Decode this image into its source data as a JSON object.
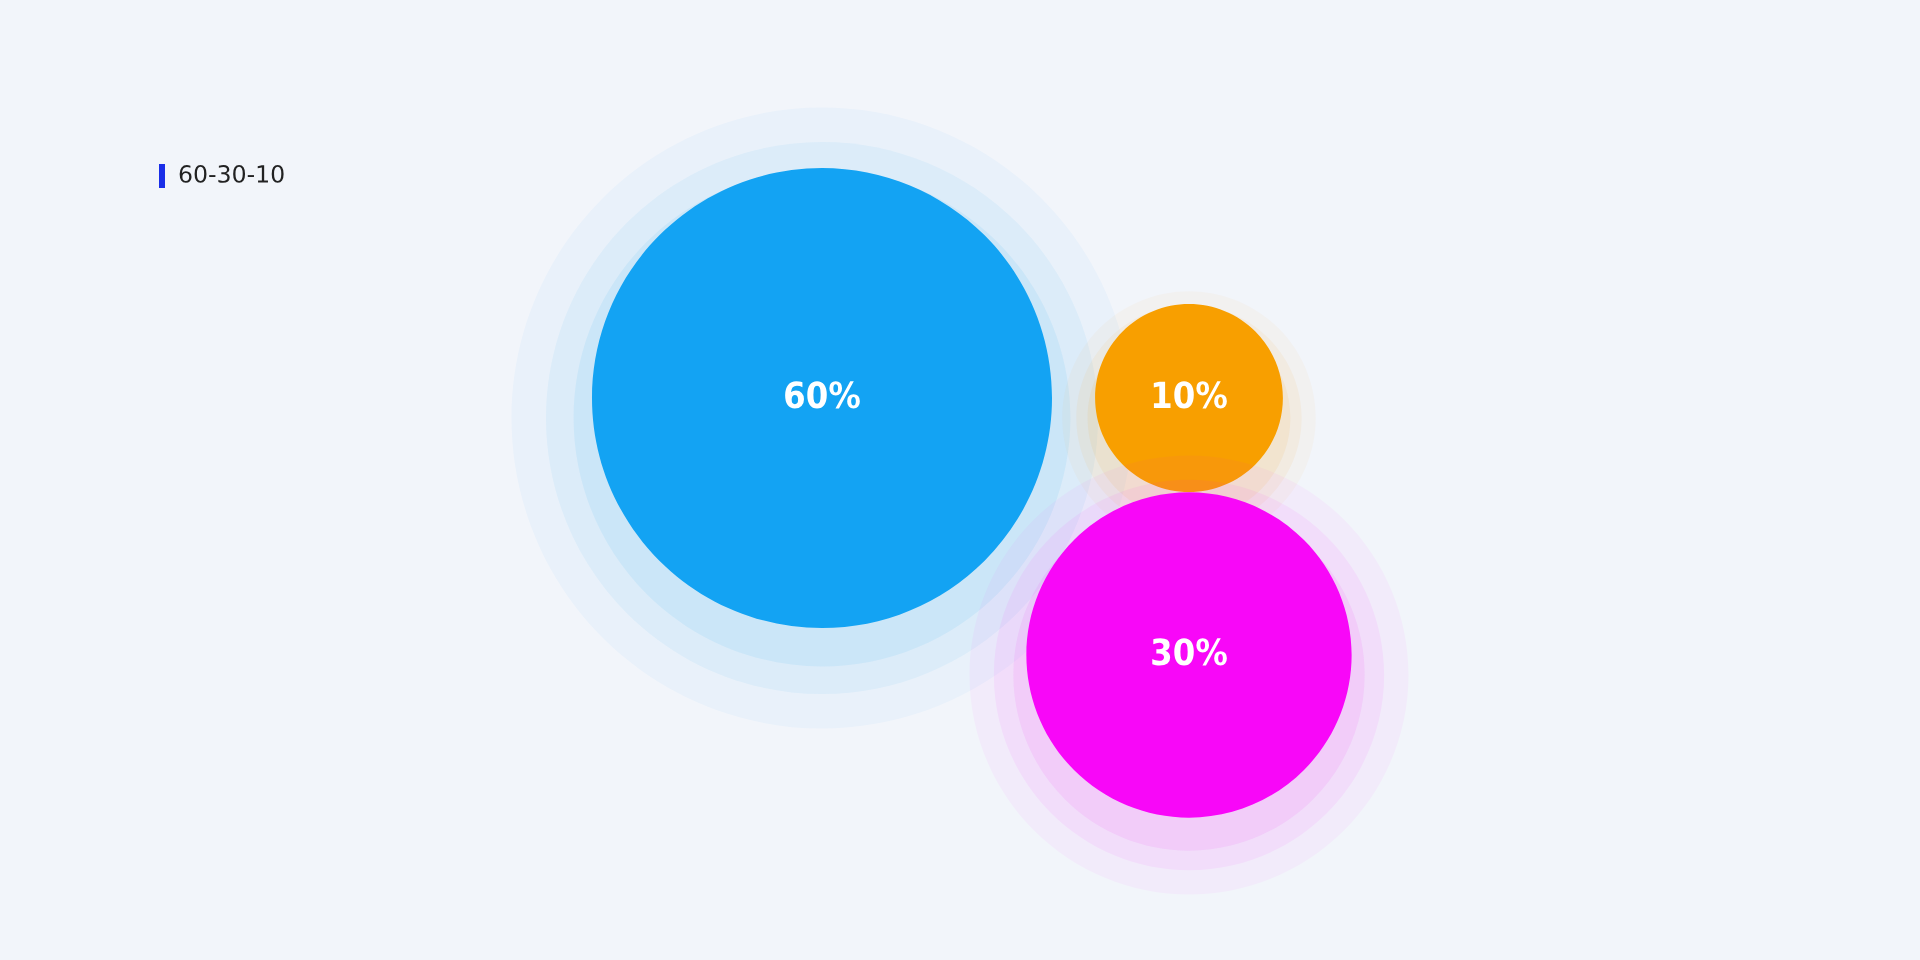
{
  "chart_data": {
    "type": "other",
    "title": "60-30-10",
    "values": [
      60,
      10,
      30
    ],
    "colors": [
      "#13a3f3",
      "#f89f00",
      "#f807f8"
    ],
    "value_labels": [
      "60%",
      "10%",
      "30%"
    ]
  }
}
